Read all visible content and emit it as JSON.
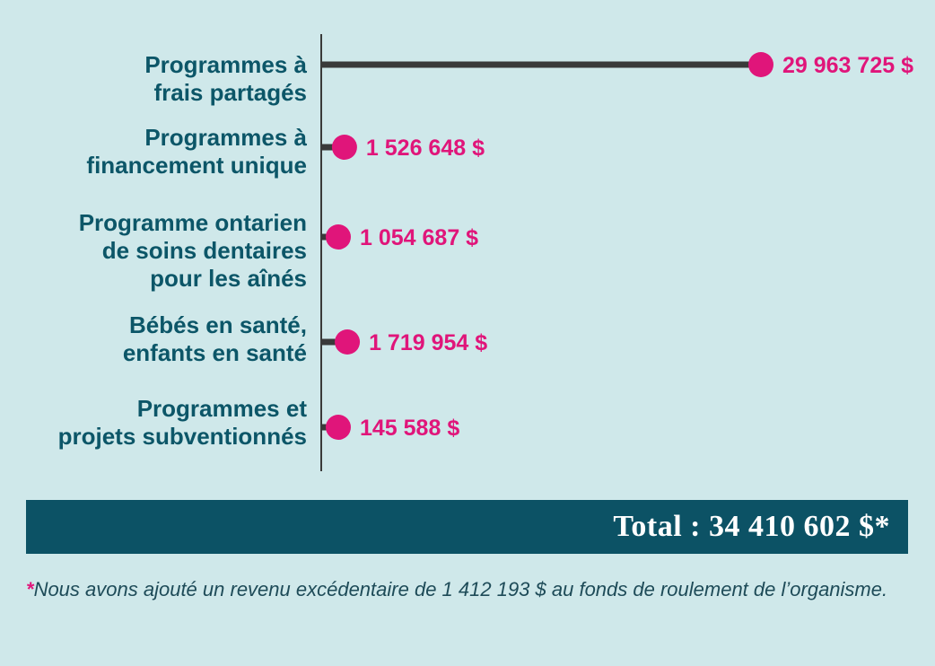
{
  "colors": {
    "background": "#cfe8ea",
    "accent": "#e0157a",
    "label_text": "#0c5668",
    "axis": "#3a3a3a",
    "total_bar": "#0c5265"
  },
  "chart_data": {
    "type": "bar",
    "orientation": "horizontal",
    "style": "lollipop",
    "categories": [
      "Programmes à frais partagés",
      "Programmes à financement unique",
      "Programme ontarien de soins dentaires pour les aînés",
      "Bébés en santé, enfants en santé",
      "Programmes et projets subventionnés"
    ],
    "category_lines": [
      [
        "Programmes à",
        "frais partagés"
      ],
      [
        "Programmes à",
        "financement unique"
      ],
      [
        "Programme ontarien",
        "de soins dentaires",
        "pour les aînés"
      ],
      [
        "Bébés en santé,",
        "enfants en santé"
      ],
      [
        "Programmes et",
        "projets subventionnés"
      ]
    ],
    "values": [
      29963725,
      1526648,
      1054687,
      1719954,
      145588
    ],
    "value_labels": [
      "29 963 725 $",
      "1 526 648 $",
      "1 054 687 $",
      "1 719 954 $",
      "145 588 $"
    ]
  },
  "total": {
    "label": "Total : 34 410 602 $*"
  },
  "footnote": {
    "marker": "*",
    "text": "Nous avons ajouté un revenu excédentaire de 1 412 193 $ au fonds de roulement de l’organisme."
  }
}
